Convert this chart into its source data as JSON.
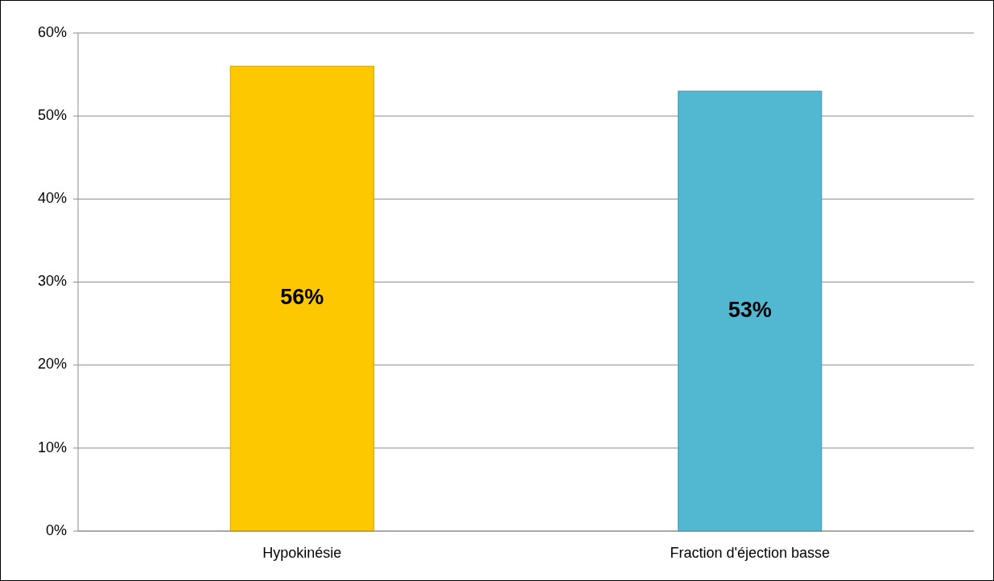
{
  "chart_data": {
    "type": "bar",
    "categories": [
      "Hypokinésie",
      "Fraction d'éjection basse"
    ],
    "values": [
      56,
      53
    ],
    "colors": [
      "#fdc800",
      "#52b7d0"
    ],
    "ylim": [
      0,
      60
    ],
    "yticks": [
      {
        "value": 0,
        "label": "0%"
      },
      {
        "value": 10,
        "label": "10%"
      },
      {
        "value": 20,
        "label": "20%"
      },
      {
        "value": 30,
        "label": "30%"
      },
      {
        "value": 40,
        "label": "40%"
      },
      {
        "value": 50,
        "label": "50%"
      },
      {
        "value": 60,
        "label": "60%"
      }
    ],
    "grid": "y",
    "data_labels": true,
    "value_labels": [
      "56%",
      "53%"
    ]
  }
}
